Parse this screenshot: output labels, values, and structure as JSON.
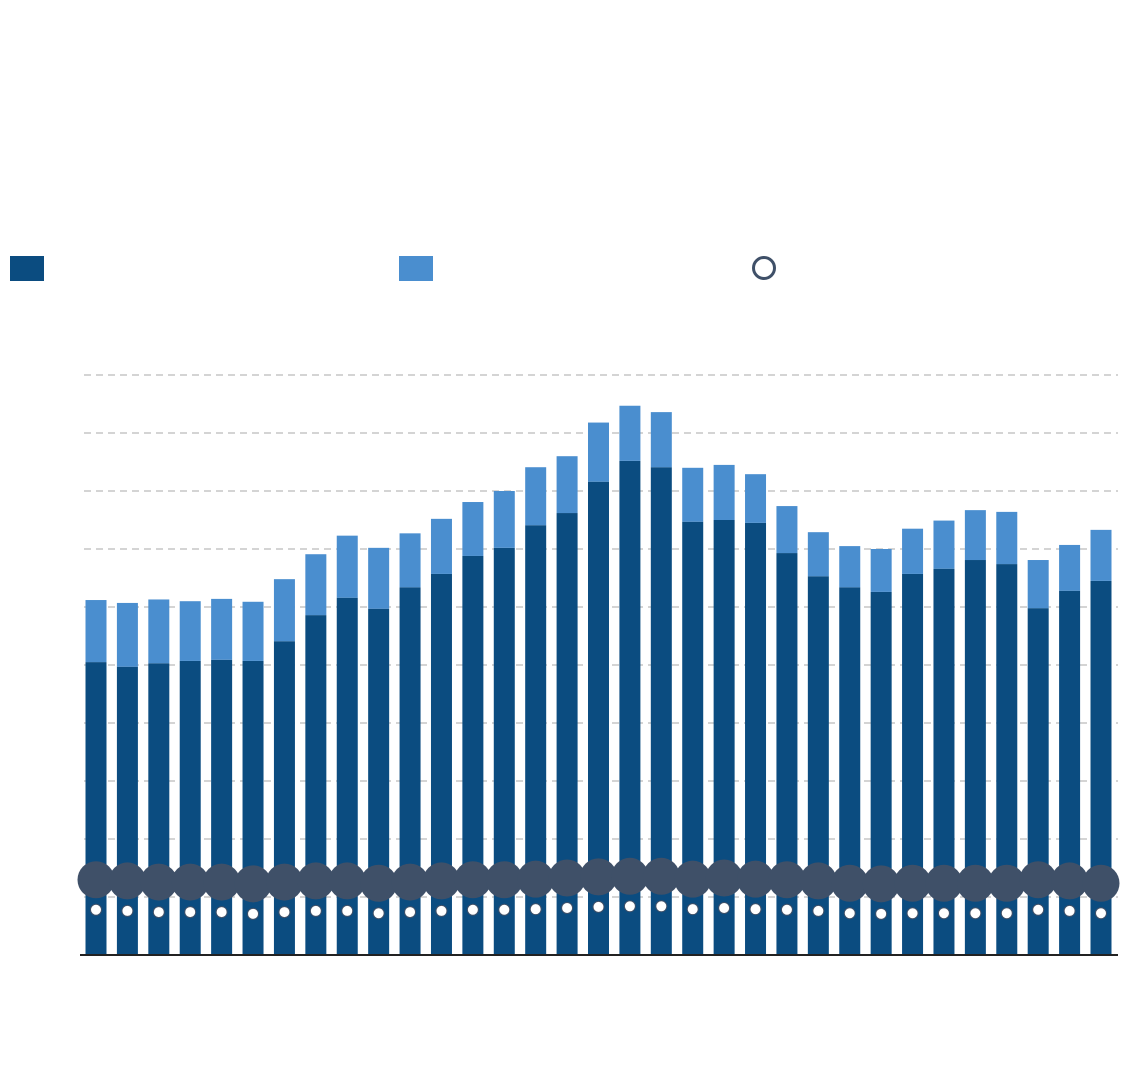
{
  "chart_data": {
    "type": "bar",
    "stacked": true,
    "categories": [
      null,
      null,
      null,
      null,
      null,
      null,
      null,
      null,
      null,
      null,
      null,
      null,
      null,
      null,
      null,
      null,
      null,
      null,
      null,
      null,
      null,
      null,
      null,
      null,
      null,
      null,
      null,
      null,
      null,
      null,
      null,
      null,
      null
    ],
    "series": [
      {
        "color": "#0b4c80",
        "values": [
          5.05,
          4.97,
          5.03,
          5.07,
          5.09,
          5.07,
          5.41,
          5.86,
          6.16,
          5.97,
          6.34,
          6.57,
          6.88,
          7.02,
          7.41,
          7.62,
          8.16,
          8.52,
          8.41,
          7.47,
          7.5,
          7.45,
          6.93,
          6.53,
          6.34,
          6.26,
          6.57,
          6.66,
          6.81,
          6.74,
          5.98,
          6.28,
          6.45
        ]
      },
      {
        "color": "#4a8ecf",
        "values": [
          1.07,
          1.1,
          1.1,
          1.03,
          1.05,
          1.02,
          1.07,
          1.05,
          1.07,
          1.05,
          0.93,
          0.95,
          0.93,
          0.98,
          1.0,
          0.98,
          1.02,
          0.95,
          0.95,
          0.93,
          0.95,
          0.84,
          0.81,
          0.76,
          0.71,
          0.74,
          0.78,
          0.83,
          0.86,
          0.9,
          0.83,
          0.79,
          0.88
        ]
      },
      {
        "type": "scatter",
        "color": "#3f5068",
        "values": [
          0.78,
          0.76,
          0.74,
          0.74,
          0.74,
          0.71,
          0.74,
          0.76,
          0.76,
          0.72,
          0.74,
          0.76,
          0.78,
          0.78,
          0.79,
          0.81,
          0.83,
          0.84,
          0.84,
          0.79,
          0.81,
          0.79,
          0.78,
          0.76,
          0.72,
          0.71,
          0.72,
          0.72,
          0.72,
          0.72,
          0.78,
          0.76,
          0.72
        ]
      }
    ],
    "ylim": [
      0,
      10
    ],
    "yticks": [
      1,
      2,
      3,
      4,
      5,
      6,
      7,
      8,
      9,
      10
    ],
    "grid": true
  }
}
